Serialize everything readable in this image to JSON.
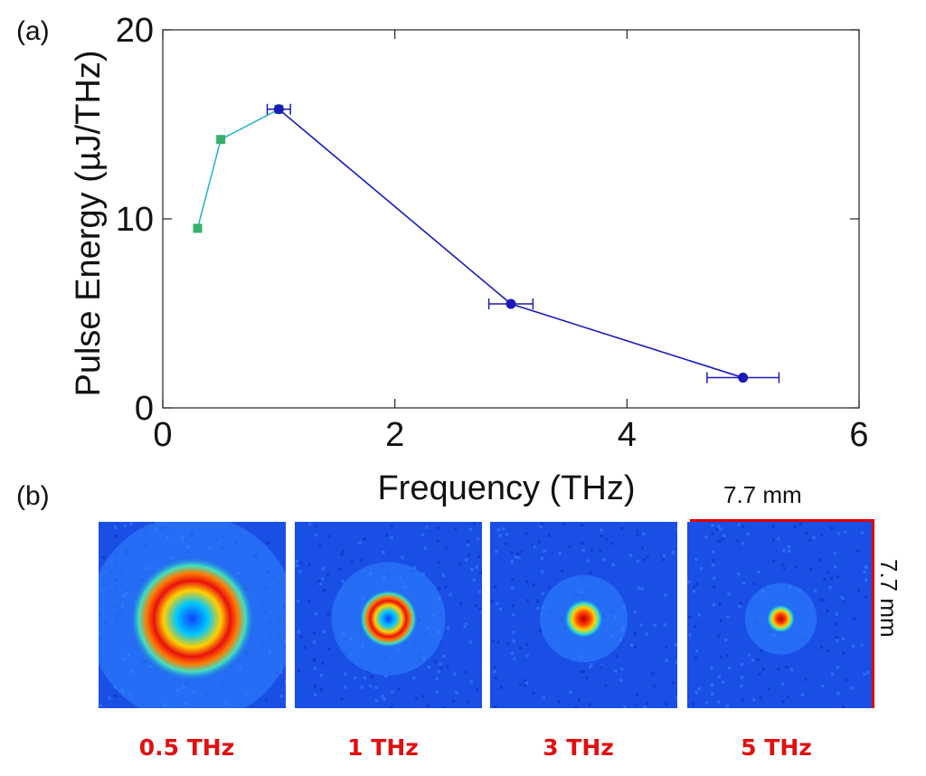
{
  "panel_a_label": "(a)",
  "panel_b_label": "(b)",
  "chart_data": {
    "type": "line",
    "xlabel": "Frequency (THz)",
    "ylabel": "Pulse Energy (µJ/THz)",
    "xlim": [
      0,
      6
    ],
    "ylim": [
      0,
      20
    ],
    "x_ticks": [
      0,
      2,
      4,
      6
    ],
    "y_ticks": [
      0,
      10,
      20
    ],
    "grid": false,
    "series": [
      {
        "color": "#2bb5c9",
        "marker_color": "#33b26a",
        "marker": "square",
        "points": [
          {
            "x": 0.3,
            "y": 9.5
          },
          {
            "x": 0.5,
            "y": 14.2
          },
          {
            "x": 1.0,
            "y": 15.8
          }
        ]
      },
      {
        "color": "#1a1ab8",
        "marker_color": "#1a1ab8",
        "marker": "circle",
        "points": [
          {
            "x": 1.0,
            "y": 15.8,
            "xerr": 0.1
          },
          {
            "x": 3.0,
            "y": 5.5,
            "xerr": 0.19
          },
          {
            "x": 5.0,
            "y": 1.6,
            "xerr": 0.31
          }
        ]
      }
    ]
  },
  "beam_images": [
    {
      "label": "0.5 THz",
      "ring_radius": 0.22,
      "spot_radius": 0.12,
      "hole": true
    },
    {
      "label": "1 THz",
      "ring_radius": 0.09,
      "spot_radius": 0.07,
      "hole": true
    },
    {
      "label": "3 THz",
      "ring_radius": 0.05,
      "spot_radius": 0.06,
      "hole": false
    },
    {
      "label": "5 THz",
      "ring_radius": 0.03,
      "spot_radius": 0.05,
      "hole": false
    }
  ],
  "label_color": "#e01010",
  "scale_color": "#e00000",
  "scale_width_label": "7.7 mm",
  "scale_height_label": "7.7 mm"
}
